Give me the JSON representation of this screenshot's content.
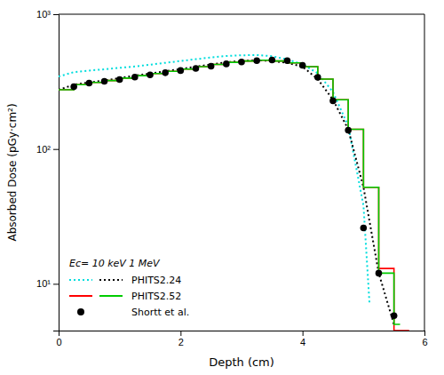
{
  "chart_data": {
    "type": "line",
    "xlabel": "Depth (cm)",
    "ylabel": "Absorbed Dose (pGy·cm²)",
    "xlim": [
      0,
      6
    ],
    "ylim": [
      4.5,
      1000
    ],
    "xticks": [
      0,
      2,
      4,
      6
    ],
    "yticks": [
      {
        "value": 10,
        "label": "10¹"
      },
      {
        "value": 100,
        "label": "10²"
      },
      {
        "value": 1000,
        "label": "10³"
      }
    ],
    "log": "y",
    "grid": false,
    "legend": "lower left",
    "annotations": [
      "Ec= 10 keV  1 MeV"
    ],
    "series": [
      {
        "name": "PHITS2.24",
        "color": "#00dddd",
        "line_style": "dotted",
        "x": [
          0.0,
          0.25,
          0.5,
          0.75,
          1.0,
          1.25,
          1.5,
          1.75,
          2.0,
          2.25,
          2.5,
          2.75,
          3.0,
          3.25,
          3.5,
          3.75,
          4.0,
          4.25,
          4.5,
          4.75,
          5.0,
          5.1
        ],
        "values": [
          345,
          372,
          382,
          390,
          400,
          410,
          422,
          436,
          450,
          464,
          478,
          490,
          496,
          498,
          488,
          462,
          425,
          365,
          265,
          148,
          38,
          7
        ]
      },
      {
        "color": "#000000",
        "line_style": "dotted",
        "x": [
          0.0,
          0.25,
          0.5,
          0.75,
          1.0,
          1.25,
          1.5,
          1.75,
          2.0,
          2.25,
          2.5,
          2.75,
          3.0,
          3.25,
          3.5,
          3.75,
          4.0,
          4.25,
          4.5,
          4.75,
          5.0,
          5.25,
          5.5
        ],
        "values": [
          275,
          300,
          312,
          322,
          336,
          350,
          363,
          377,
          392,
          408,
          424,
          440,
          450,
          456,
          450,
          436,
          408,
          330,
          232,
          140,
          52,
          12,
          5.0
        ]
      },
      {
        "name": "PHITS2.52",
        "color": "#ff0000",
        "line_style": "solid",
        "x": [
          0.0,
          0.25,
          0.25,
          0.5,
          0.5,
          0.75,
          0.75,
          1.0,
          1.0,
          1.25,
          1.25,
          1.5,
          1.5,
          1.75,
          1.75,
          2.0,
          2.0,
          2.25,
          2.25,
          2.5,
          2.5,
          2.75,
          2.75,
          3.0,
          3.0,
          3.25,
          3.25,
          3.5,
          3.5,
          3.75,
          3.75,
          4.0,
          4.0,
          4.25,
          4.25,
          4.5,
          4.5,
          4.75,
          4.75,
          5.0,
          5.0,
          5.25,
          5.25,
          5.5,
          5.5,
          5.75
        ],
        "values": [
          275,
          275,
          300,
          300,
          312,
          312,
          322,
          322,
          336,
          336,
          350,
          350,
          363,
          363,
          377,
          377,
          392,
          392,
          408,
          408,
          424,
          424,
          440,
          440,
          450,
          450,
          456,
          456,
          450,
          450,
          436,
          436,
          408,
          408,
          330,
          330,
          232,
          232,
          140,
          140,
          52,
          52,
          13,
          13,
          4.5,
          4.5
        ]
      },
      {
        "color": "#00cc00",
        "line_style": "solid",
        "x": [
          0.0,
          0.25,
          0.25,
          0.5,
          0.5,
          0.75,
          0.75,
          1.0,
          1.0,
          1.25,
          1.25,
          1.5,
          1.5,
          1.75,
          1.75,
          2.0,
          2.0,
          2.25,
          2.25,
          2.5,
          2.5,
          2.75,
          2.75,
          3.0,
          3.0,
          3.25,
          3.25,
          3.5,
          3.5,
          3.75,
          3.75,
          4.0,
          4.0,
          4.25,
          4.25,
          4.5,
          4.5,
          4.75,
          4.75,
          5.0,
          5.0,
          5.25,
          5.25,
          5.5,
          5.5,
          5.6
        ],
        "values": [
          275,
          275,
          300,
          300,
          312,
          312,
          322,
          322,
          336,
          336,
          350,
          350,
          363,
          363,
          377,
          377,
          392,
          392,
          408,
          408,
          424,
          424,
          440,
          440,
          450,
          450,
          456,
          456,
          450,
          450,
          436,
          436,
          408,
          408,
          330,
          330,
          232,
          232,
          140,
          140,
          52,
          52,
          12,
          12,
          5.0,
          5.0
        ]
      },
      {
        "name": "Shortt et al.",
        "type": "scatter",
        "marker": "circle",
        "color": "#000000",
        "x": [
          0.25,
          0.5,
          0.75,
          1.0,
          1.25,
          1.5,
          1.75,
          2.0,
          2.25,
          2.5,
          2.75,
          3.0,
          3.25,
          3.5,
          3.75,
          4.0,
          4.25,
          4.5,
          4.75,
          5.0,
          5.25,
          5.5
        ],
        "values": [
          290,
          308,
          318,
          328,
          342,
          355,
          368,
          382,
          396,
          412,
          428,
          442,
          452,
          458,
          452,
          418,
          340,
          228,
          138,
          26,
          12,
          5.8
        ]
      }
    ]
  }
}
